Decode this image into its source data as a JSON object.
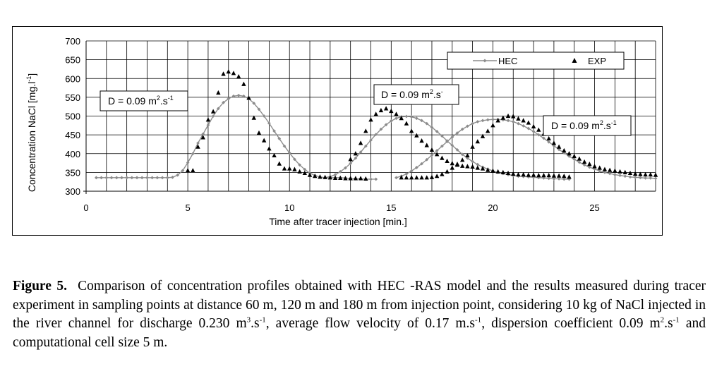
{
  "chart_data": {
    "type": "scatter",
    "title": "",
    "xlabel": "Time after tracer injection [min.]",
    "ylabel_main": "Concentration NaCl [mg.l",
    "ylabel_sup": "-1",
    "ylabel_end": "]",
    "xlim": [
      0,
      28
    ],
    "ylim": [
      300,
      700
    ],
    "x_ticks": [
      0,
      5,
      10,
      15,
      20,
      25
    ],
    "y_ticks": [
      300,
      350,
      400,
      450,
      500,
      550,
      600,
      650,
      700
    ],
    "grid": true,
    "legend": {
      "placement": "top-right",
      "entries": [
        "HEC",
        "EXP"
      ]
    },
    "annotations": [
      {
        "text_main": "D = 0.09 m",
        "sup1": "2",
        "mid": ".s",
        "sup2": "-1"
      },
      {
        "text_main": "D = 0.09 m",
        "sup1": "2",
        "mid": ".s",
        "sup2": "-"
      },
      {
        "text_main": "D = 0.09 m",
        "sup1": "2",
        "mid": ".s",
        "sup2": "-1"
      }
    ],
    "colors": {
      "HEC": "#8c8c8c",
      "EXP": "#000000"
    },
    "series": [
      {
        "name": "HEC",
        "marker": "diamond",
        "points": [
          [
            0.5,
            336
          ],
          [
            0.75,
            336
          ],
          [
            1.0,
            336
          ],
          [
            1.25,
            336
          ],
          [
            1.5,
            336
          ],
          [
            1.75,
            336
          ],
          [
            2.0,
            336
          ],
          [
            2.25,
            336
          ],
          [
            2.5,
            336
          ],
          [
            2.75,
            336
          ],
          [
            3.0,
            336
          ],
          [
            3.25,
            336
          ],
          [
            3.5,
            336
          ],
          [
            3.75,
            336
          ],
          [
            4.0,
            336
          ],
          [
            4.25,
            337
          ],
          [
            4.5,
            343
          ],
          [
            4.75,
            355
          ],
          [
            5.0,
            376
          ],
          [
            5.25,
            400
          ],
          [
            5.5,
            428
          ],
          [
            5.75,
            452
          ],
          [
            6.0,
            476
          ],
          [
            6.25,
            500
          ],
          [
            6.5,
            520
          ],
          [
            6.75,
            536
          ],
          [
            7.0,
            546
          ],
          [
            7.25,
            553
          ],
          [
            7.5,
            555
          ],
          [
            7.75,
            553
          ],
          [
            8.0,
            546
          ],
          [
            8.25,
            534
          ],
          [
            8.5,
            518
          ],
          [
            8.75,
            500
          ],
          [
            9.0,
            481
          ],
          [
            9.25,
            460
          ],
          [
            9.5,
            440
          ],
          [
            9.75,
            420
          ],
          [
            10.0,
            402
          ],
          [
            10.25,
            385
          ],
          [
            10.5,
            370
          ],
          [
            10.75,
            358
          ],
          [
            11.0,
            348
          ],
          [
            11.25,
            342
          ],
          [
            11.5,
            338
          ],
          [
            11.75,
            336
          ],
          [
            12.0,
            336
          ],
          [
            12.25,
            336
          ],
          [
            12.5,
            336
          ],
          [
            12.75,
            335
          ],
          [
            13.0,
            334
          ],
          [
            13.25,
            333
          ],
          [
            13.5,
            333
          ],
          [
            13.75,
            332
          ],
          [
            14.0,
            332
          ],
          [
            14.25,
            332
          ],
          [
            11.75,
            336
          ],
          [
            12.0,
            339
          ],
          [
            12.25,
            344
          ],
          [
            12.5,
            352
          ],
          [
            12.75,
            362
          ],
          [
            13.0,
            374
          ],
          [
            13.25,
            388
          ],
          [
            13.5,
            404
          ],
          [
            13.75,
            420
          ],
          [
            14.0,
            436
          ],
          [
            14.25,
            451
          ],
          [
            14.5,
            465
          ],
          [
            14.75,
            477
          ],
          [
            15.0,
            487
          ],
          [
            15.25,
            494
          ],
          [
            15.5,
            498
          ],
          [
            15.75,
            499
          ],
          [
            16.0,
            498
          ],
          [
            16.25,
            494
          ],
          [
            16.5,
            488
          ],
          [
            16.75,
            480
          ],
          [
            17.0,
            470
          ],
          [
            17.25,
            459
          ],
          [
            17.5,
            447
          ],
          [
            17.75,
            434
          ],
          [
            18.0,
            422
          ],
          [
            18.25,
            410
          ],
          [
            18.5,
            398
          ],
          [
            18.75,
            388
          ],
          [
            19.0,
            379
          ],
          [
            19.25,
            371
          ],
          [
            19.5,
            364
          ],
          [
            19.75,
            359
          ],
          [
            20.0,
            354
          ],
          [
            20.25,
            350
          ],
          [
            20.5,
            347
          ],
          [
            20.75,
            344
          ],
          [
            21.0,
            342
          ],
          [
            21.25,
            340
          ],
          [
            21.5,
            339
          ],
          [
            21.75,
            338
          ],
          [
            22.0,
            337
          ],
          [
            22.25,
            336
          ],
          [
            22.5,
            335
          ],
          [
            22.75,
            334
          ],
          [
            23.0,
            333
          ],
          [
            23.25,
            333
          ],
          [
            23.5,
            332
          ],
          [
            23.75,
            332
          ],
          [
            15.25,
            336
          ],
          [
            15.5,
            340
          ],
          [
            15.75,
            346
          ],
          [
            16.0,
            354
          ],
          [
            16.25,
            363
          ],
          [
            16.5,
            373
          ],
          [
            16.75,
            384
          ],
          [
            17.0,
            396
          ],
          [
            17.25,
            408
          ],
          [
            17.5,
            420
          ],
          [
            17.75,
            432
          ],
          [
            18.0,
            444
          ],
          [
            18.25,
            455
          ],
          [
            18.5,
            465
          ],
          [
            18.75,
            473
          ],
          [
            19.0,
            480
          ],
          [
            19.25,
            485
          ],
          [
            19.5,
            488
          ],
          [
            19.75,
            490
          ],
          [
            20.0,
            491
          ],
          [
            20.25,
            491
          ],
          [
            20.5,
            490
          ],
          [
            20.75,
            488
          ],
          [
            21.0,
            485
          ],
          [
            21.25,
            480
          ],
          [
            21.5,
            474
          ],
          [
            21.75,
            467
          ],
          [
            22.0,
            459
          ],
          [
            22.25,
            450
          ],
          [
            22.5,
            441
          ],
          [
            22.75,
            431
          ],
          [
            23.0,
            421
          ],
          [
            23.25,
            411
          ],
          [
            23.5,
            402
          ],
          [
            23.75,
            393
          ],
          [
            24.0,
            385
          ],
          [
            24.25,
            377
          ],
          [
            24.5,
            370
          ],
          [
            24.75,
            364
          ],
          [
            25.0,
            359
          ],
          [
            25.25,
            354
          ],
          [
            25.5,
            350
          ],
          [
            25.75,
            347
          ],
          [
            26.0,
            344
          ],
          [
            26.25,
            342
          ],
          [
            26.5,
            340
          ],
          [
            26.75,
            338
          ],
          [
            27.0,
            337
          ],
          [
            27.25,
            336
          ],
          [
            27.5,
            335
          ],
          [
            27.75,
            335
          ],
          [
            28.0,
            334
          ]
        ]
      },
      {
        "name": "EXP",
        "marker": "triangle",
        "points": [
          [
            5.0,
            355
          ],
          [
            5.25,
            355
          ],
          [
            5.5,
            418
          ],
          [
            5.75,
            443
          ],
          [
            6.0,
            490
          ],
          [
            6.25,
            512
          ],
          [
            6.5,
            562
          ],
          [
            6.75,
            612
          ],
          [
            7.0,
            618
          ],
          [
            7.25,
            614
          ],
          [
            7.5,
            605
          ],
          [
            7.75,
            585
          ],
          [
            8.0,
            548
          ],
          [
            8.25,
            495
          ],
          [
            8.5,
            455
          ],
          [
            8.75,
            435
          ],
          [
            9.0,
            413
          ],
          [
            9.25,
            395
          ],
          [
            9.5,
            373
          ],
          [
            9.75,
            360
          ],
          [
            10.0,
            360
          ],
          [
            10.25,
            358
          ],
          [
            10.5,
            352
          ],
          [
            10.75,
            348
          ],
          [
            11.0,
            343
          ],
          [
            11.25,
            340
          ],
          [
            11.5,
            338
          ],
          [
            11.75,
            337
          ],
          [
            12.0,
            336
          ],
          [
            12.25,
            335
          ],
          [
            12.5,
            335
          ],
          [
            12.75,
            334
          ],
          [
            13.0,
            334
          ],
          [
            13.25,
            334
          ],
          [
            13.5,
            334
          ],
          [
            13.75,
            333
          ],
          [
            13.0,
            385
          ],
          [
            13.25,
            400
          ],
          [
            13.5,
            428
          ],
          [
            13.75,
            460
          ],
          [
            14.0,
            490
          ],
          [
            14.25,
            505
          ],
          [
            14.5,
            515
          ],
          [
            14.75,
            520
          ],
          [
            15.0,
            513
          ],
          [
            15.25,
            505
          ],
          [
            15.5,
            494
          ],
          [
            15.75,
            480
          ],
          [
            16.0,
            460
          ],
          [
            16.25,
            448
          ],
          [
            16.5,
            434
          ],
          [
            16.75,
            422
          ],
          [
            17.0,
            410
          ],
          [
            17.25,
            398
          ],
          [
            17.5,
            388
          ],
          [
            17.75,
            380
          ],
          [
            18.0,
            374
          ],
          [
            18.25,
            370
          ],
          [
            18.5,
            367
          ],
          [
            18.75,
            366
          ],
          [
            19.0,
            365
          ],
          [
            19.25,
            362
          ],
          [
            19.5,
            360
          ],
          [
            19.75,
            356
          ],
          [
            20.0,
            354
          ],
          [
            20.25,
            352
          ],
          [
            20.5,
            350
          ],
          [
            20.75,
            348
          ],
          [
            21.0,
            346
          ],
          [
            21.25,
            344
          ],
          [
            21.5,
            344
          ],
          [
            21.75,
            343
          ],
          [
            22.0,
            343
          ],
          [
            22.25,
            342
          ],
          [
            22.5,
            342
          ],
          [
            22.75,
            342
          ],
          [
            23.0,
            341
          ],
          [
            23.25,
            341
          ],
          [
            23.5,
            340
          ],
          [
            23.75,
            338
          ],
          [
            15.5,
            336
          ],
          [
            15.75,
            336
          ],
          [
            16.0,
            336
          ],
          [
            16.25,
            336
          ],
          [
            16.5,
            336
          ],
          [
            16.75,
            336
          ],
          [
            17.0,
            337
          ],
          [
            17.25,
            340
          ],
          [
            17.5,
            345
          ],
          [
            17.75,
            352
          ],
          [
            18.0,
            362
          ],
          [
            18.25,
            372
          ],
          [
            18.5,
            383
          ],
          [
            18.75,
            395
          ],
          [
            19.0,
            418
          ],
          [
            19.25,
            432
          ],
          [
            19.5,
            446
          ],
          [
            19.75,
            460
          ],
          [
            20.0,
            475
          ],
          [
            20.25,
            488
          ],
          [
            20.5,
            495
          ],
          [
            20.75,
            500
          ],
          [
            21.0,
            499
          ],
          [
            21.25,
            493
          ],
          [
            21.5,
            488
          ],
          [
            21.75,
            482
          ],
          [
            22.0,
            472
          ],
          [
            22.25,
            463
          ],
          [
            22.5,
            452
          ],
          [
            22.75,
            440
          ],
          [
            23.0,
            428
          ],
          [
            23.25,
            418
          ],
          [
            23.5,
            408
          ],
          [
            23.75,
            400
          ],
          [
            24.0,
            393
          ],
          [
            24.25,
            386
          ],
          [
            24.5,
            378
          ],
          [
            24.75,
            372
          ],
          [
            25.0,
            366
          ],
          [
            25.25,
            362
          ],
          [
            25.5,
            358
          ],
          [
            25.75,
            356
          ],
          [
            26.0,
            354
          ],
          [
            26.25,
            352
          ],
          [
            26.5,
            350
          ],
          [
            26.75,
            348
          ],
          [
            27.0,
            346
          ],
          [
            27.25,
            345
          ],
          [
            27.5,
            344
          ],
          [
            27.75,
            344
          ],
          [
            28.0,
            343
          ]
        ]
      }
    ]
  },
  "caption": {
    "lead": "Figure 5.",
    "p1": "Comparison of concentration profiles obtained with HEC -RAS model and the results measured during tracer experiment in sampling points at distance 60 m, 120 m and 180 m from injection point, considering 10 kg of  NaCl injected in the river channel for discharge 0.230 m",
    "sup1": "3",
    "p2": ".s",
    "sup2": "-1",
    "p3": ", average flow velocity of  0.17 m.s",
    "sup3": "-1",
    "p4": ",  dispersion coefficient 0.09 m",
    "sup4": "2",
    "p5": ".s",
    "sup5": "-1",
    "p6": " and computational cell size 5 m."
  }
}
